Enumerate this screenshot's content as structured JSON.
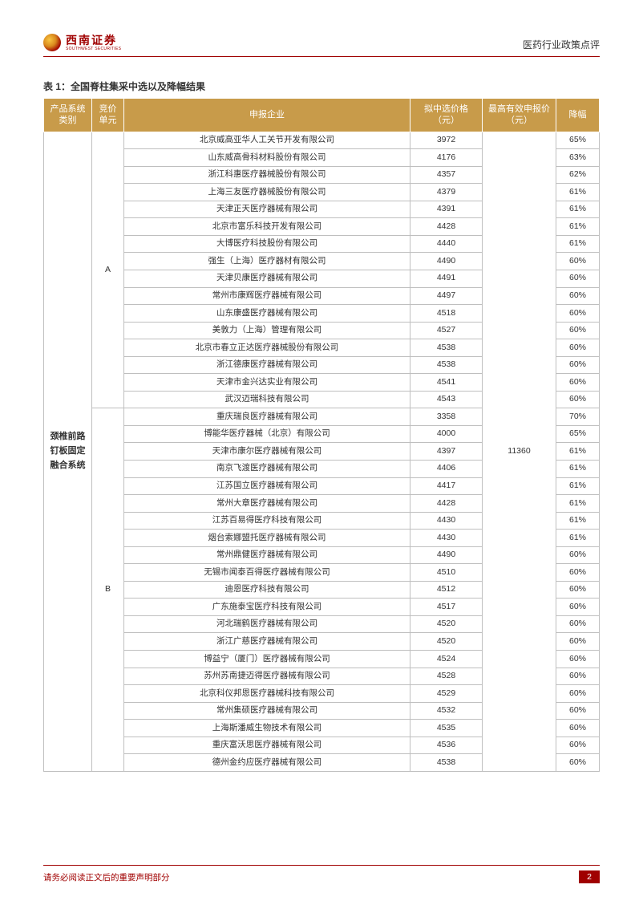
{
  "header": {
    "logo_cn": "西南证券",
    "logo_en": "SOUTHWEST SECURITIES",
    "doc_title": "医药行业政策点评"
  },
  "table": {
    "title": "表 1：全国脊柱集采中选以及降幅结果",
    "columns": {
      "system": "产品系统类别",
      "unit": "竞价单元",
      "company": "申报企业",
      "price": "拟中选价格（元）",
      "max_price": "最高有效申报价（元）",
      "drop": "降幅"
    },
    "system_label": "颈椎前路钉板固定融合系统",
    "max_price_value": "11360",
    "groups": [
      {
        "unit": "A",
        "rows": [
          {
            "company": "北京威高亚华人工关节开发有限公司",
            "price": "3972",
            "drop": "65%"
          },
          {
            "company": "山东威高骨科材料股份有限公司",
            "price": "4176",
            "drop": "63%"
          },
          {
            "company": "浙江科惠医疗器械股份有限公司",
            "price": "4357",
            "drop": "62%"
          },
          {
            "company": "上海三友医疗器械股份有限公司",
            "price": "4379",
            "drop": "61%"
          },
          {
            "company": "天津正天医疗器械有限公司",
            "price": "4391",
            "drop": "61%"
          },
          {
            "company": "北京市富乐科技开发有限公司",
            "price": "4428",
            "drop": "61%"
          },
          {
            "company": "大博医疗科技股份有限公司",
            "price": "4440",
            "drop": "61%"
          },
          {
            "company": "强生（上海）医疗器材有限公司",
            "price": "4490",
            "drop": "60%"
          },
          {
            "company": "天津贝康医疗器械有限公司",
            "price": "4491",
            "drop": "60%"
          },
          {
            "company": "常州市康辉医疗器械有限公司",
            "price": "4497",
            "drop": "60%"
          },
          {
            "company": "山东康盛医疗器械有限公司",
            "price": "4518",
            "drop": "60%"
          },
          {
            "company": "美敦力（上海）管理有限公司",
            "price": "4527",
            "drop": "60%"
          },
          {
            "company": "北京市春立正达医疗器械股份有限公司",
            "price": "4538",
            "drop": "60%"
          },
          {
            "company": "浙江德康医疗器械有限公司",
            "price": "4538",
            "drop": "60%"
          },
          {
            "company": "天津市金兴达实业有限公司",
            "price": "4541",
            "drop": "60%"
          },
          {
            "company": "武汉迈瑞科技有限公司",
            "price": "4543",
            "drop": "60%"
          }
        ]
      },
      {
        "unit": "B",
        "rows": [
          {
            "company": "重庆瑞良医疗器械有限公司",
            "price": "3358",
            "drop": "70%"
          },
          {
            "company": "博能华医疗器械（北京）有限公司",
            "price": "4000",
            "drop": "65%"
          },
          {
            "company": "天津市康尔医疗器械有限公司",
            "price": "4397",
            "drop": "61%"
          },
          {
            "company": "南京飞渡医疗器械有限公司",
            "price": "4406",
            "drop": "61%"
          },
          {
            "company": "江苏国立医疗器械有限公司",
            "price": "4417",
            "drop": "61%"
          },
          {
            "company": "常州大章医疗器械有限公司",
            "price": "4428",
            "drop": "61%"
          },
          {
            "company": "江苏百易得医疗科技有限公司",
            "price": "4430",
            "drop": "61%"
          },
          {
            "company": "烟台索娜盟托医疗器械有限公司",
            "price": "4430",
            "drop": "61%"
          },
          {
            "company": "常州鼎健医疗器械有限公司",
            "price": "4490",
            "drop": "60%"
          },
          {
            "company": "无锡市闻泰百得医疗器械有限公司",
            "price": "4510",
            "drop": "60%"
          },
          {
            "company": "迪恩医疗科技有限公司",
            "price": "4512",
            "drop": "60%"
          },
          {
            "company": "广东施泰宝医疗科技有限公司",
            "price": "4517",
            "drop": "60%"
          },
          {
            "company": "河北瑞鹤医疗器械有限公司",
            "price": "4520",
            "drop": "60%"
          },
          {
            "company": "浙江广慈医疗器械有限公司",
            "price": "4520",
            "drop": "60%"
          },
          {
            "company": "博益宁（厦门）医疗器械有限公司",
            "price": "4524",
            "drop": "60%"
          },
          {
            "company": "苏州苏南捷迈得医疗器械有限公司",
            "price": "4528",
            "drop": "60%"
          },
          {
            "company": "北京科仪邦恩医疗器械科技有限公司",
            "price": "4529",
            "drop": "60%"
          },
          {
            "company": "常州集硕医疗器械有限公司",
            "price": "4532",
            "drop": "60%"
          },
          {
            "company": "上海斯潘威生物技术有限公司",
            "price": "4535",
            "drop": "60%"
          },
          {
            "company": "重庆富沃思医疗器械有限公司",
            "price": "4536",
            "drop": "60%"
          },
          {
            "company": "德州金约应医疗器械有限公司",
            "price": "4538",
            "drop": "60%"
          }
        ]
      }
    ]
  },
  "footer": {
    "text": "请务必阅读正文后的重要声明部分",
    "page": "2"
  }
}
